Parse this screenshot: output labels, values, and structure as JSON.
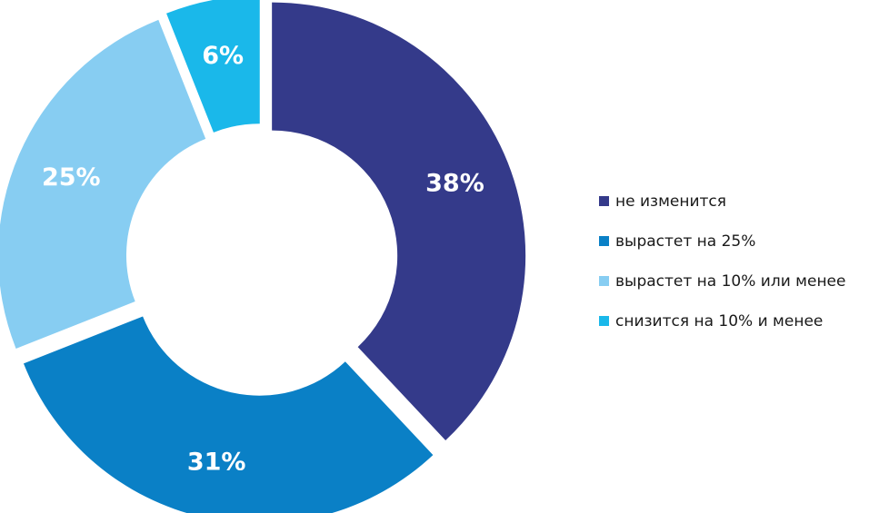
{
  "chart_data": {
    "type": "pie",
    "donut": true,
    "legend_position": "right",
    "slices": [
      {
        "label": "не изменится",
        "value": 38,
        "display": "38%",
        "color": "#343a8a"
      },
      {
        "label": "вырастет на 25%",
        "value": 31,
        "display": "31%",
        "color": "#0a80c6"
      },
      {
        "label": "вырастет на 10% или менее",
        "value": 25,
        "display": "25%",
        "color": "#87cdf2"
      },
      {
        "label": "снизится на 10% и менее",
        "value": 6,
        "display": "6%",
        "color": "#1ab8ea"
      }
    ]
  }
}
